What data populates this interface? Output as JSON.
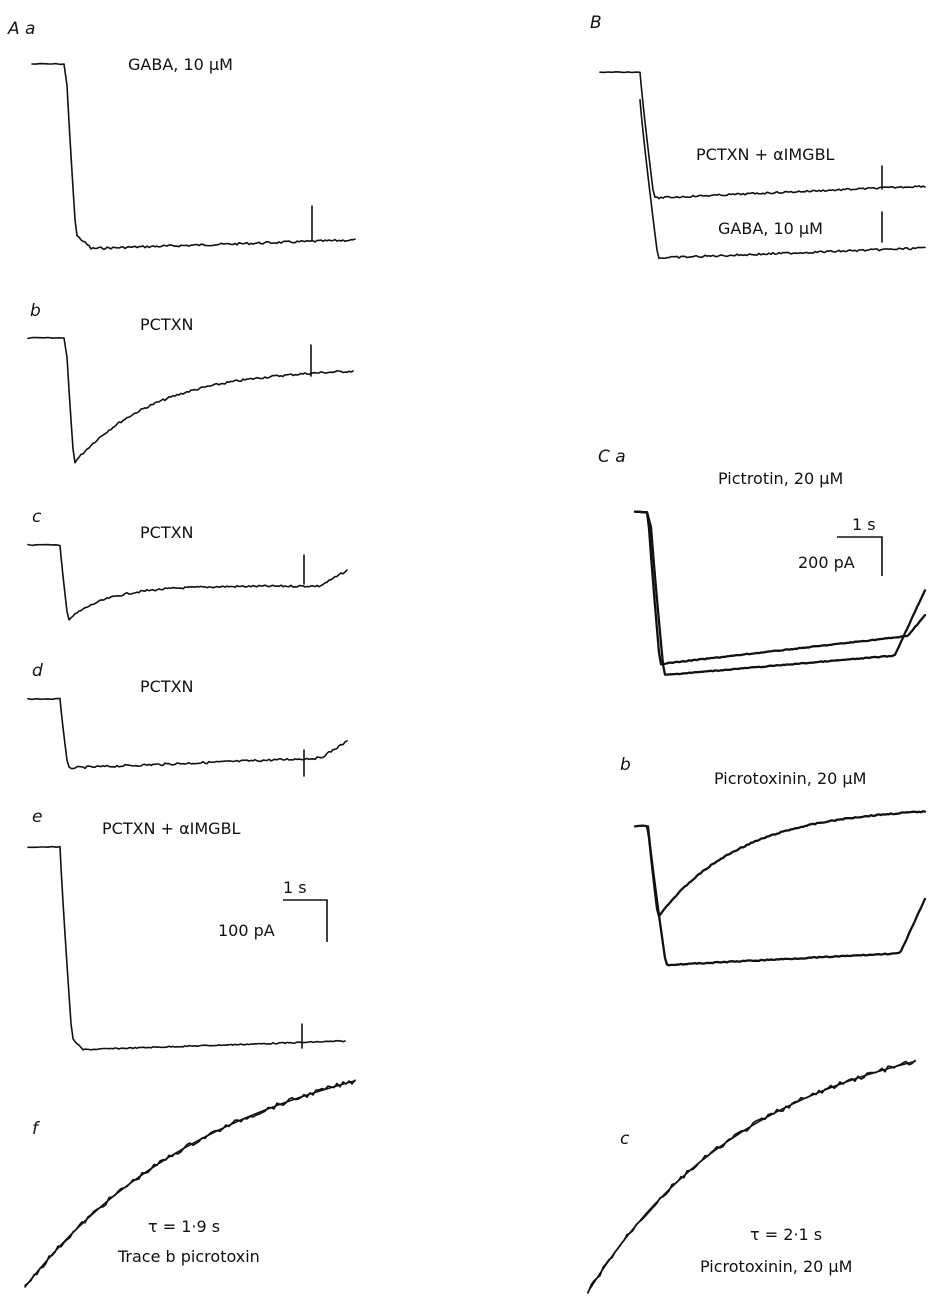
{
  "panels": {
    "Aa": {
      "letter": "A a",
      "label": "GABA, 10 μM"
    },
    "Ab": {
      "letter": "b",
      "label": "PCTXN"
    },
    "Ac": {
      "letter": "c",
      "label": "PCTXN"
    },
    "Ad": {
      "letter": "d",
      "label": "PCTXN"
    },
    "Ae": {
      "letter": "e",
      "label": "PCTXN + αIMGBL"
    },
    "Af": {
      "letter": "f",
      "tau": "τ = 1·9 s",
      "caption": "Trace b picrotoxin"
    },
    "B": {
      "letter": "B",
      "label_top": "PCTXN + αIMGBL",
      "label_bottom": "GABA, 10 μM"
    },
    "Ca": {
      "letter": "C a",
      "label": "Pictrotin, 20 μM"
    },
    "Cb": {
      "letter": "b",
      "label": "Picrotoxinin,  20 μM"
    },
    "Cc": {
      "letter": "c",
      "tau": "τ = 2·1 s",
      "caption": "Picrotoxinin,  20 μM"
    }
  },
  "scalebars": {
    "A": {
      "time": "1 s",
      "current": "100 pA"
    },
    "C": {
      "time": "1 s",
      "current": "200 pA"
    }
  }
}
